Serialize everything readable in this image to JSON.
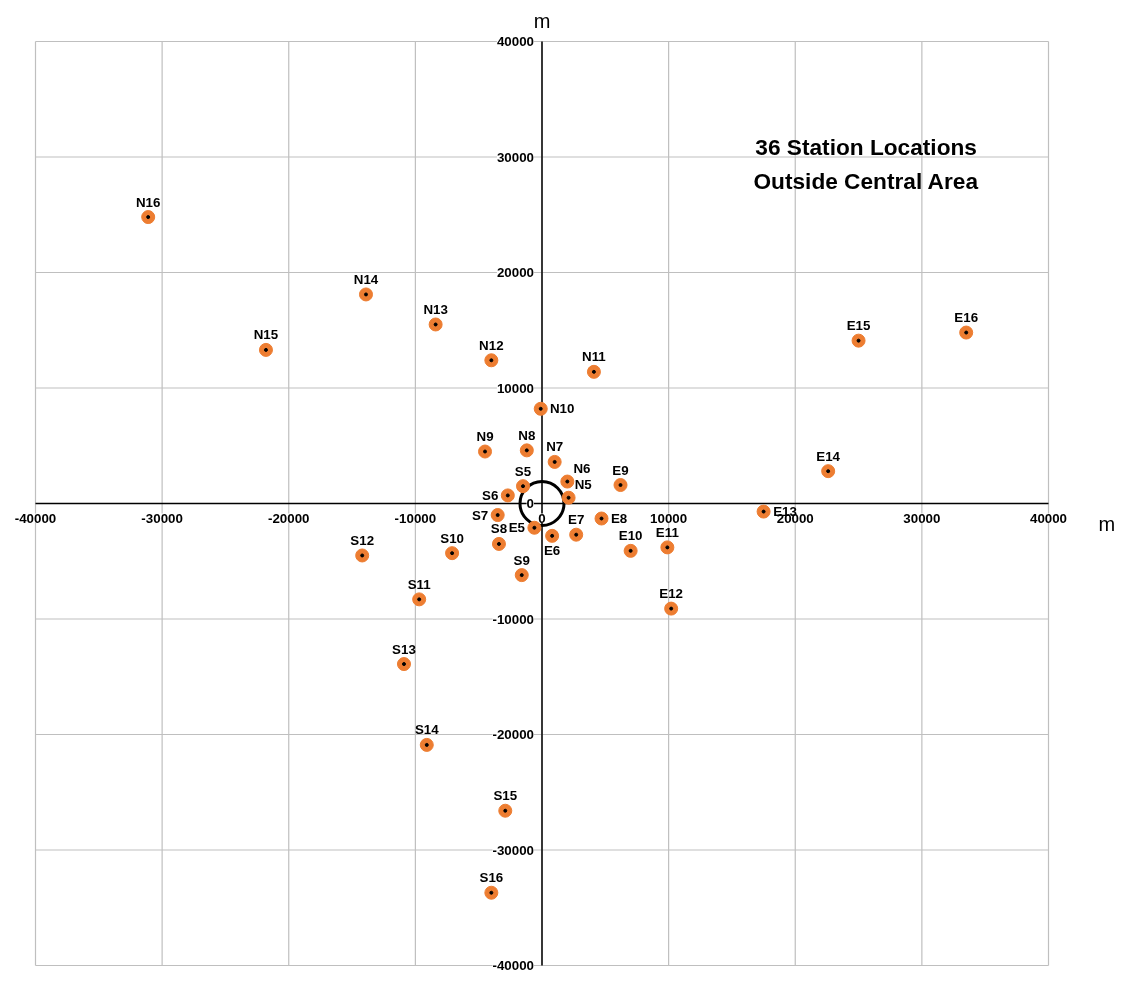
{
  "chart_data": {
    "type": "scatter",
    "title": "36 Station Locations\nOutside Central Area",
    "xlabel": "m",
    "ylabel": "m",
    "xlim": [
      -40000,
      40000
    ],
    "ylim": [
      -40000,
      40000
    ],
    "xticks": [
      -40000,
      -30000,
      -20000,
      -10000,
      0,
      10000,
      20000,
      30000,
      40000
    ],
    "yticks": [
      -40000,
      -30000,
      -20000,
      -10000,
      0,
      10000,
      20000,
      30000,
      40000
    ],
    "grid": true,
    "marker": "circle",
    "series": [
      {
        "color": "#ed7d31",
        "x": [
          2100,
          2000,
          1000,
          -1200,
          -4500,
          -100,
          4100,
          -4000,
          -8400,
          -13900,
          -21800,
          -31100,
          -1500,
          -2700,
          -3500,
          -3400,
          -1600,
          -7100,
          -9700,
          -14200,
          -10900,
          -9100,
          -2900,
          -4000,
          -600,
          800,
          2700,
          4700,
          6200,
          7000,
          9900,
          10200,
          17500,
          22600,
          25000,
          33500
        ],
        "values": [
          500,
          1900,
          3600,
          4600,
          4500,
          8200,
          11400,
          12400,
          15500,
          18100,
          13300,
          24800,
          1500,
          700,
          -1000,
          -3500,
          -6200,
          -4300,
          -8300,
          -4500,
          -13900,
          -20900,
          -26600,
          -33700,
          -2100,
          -2800,
          -2700,
          -1300,
          1600,
          -4100,
          -3800,
          -9100,
          -700,
          2800,
          14100,
          14800
        ],
        "value_labels": [
          "N5",
          "N6",
          "N7",
          "N8",
          "N9",
          "N10",
          "N11",
          "N12",
          "N13",
          "N14",
          "N15",
          "N16",
          "S5",
          "S6",
          "S7",
          "S8",
          "S9",
          "S10",
          "S11",
          "S12",
          "S13",
          "S14",
          "S15",
          "S16",
          "E5",
          "E6",
          "E7",
          "E8",
          "E9",
          "E10",
          "E11",
          "E12",
          "E13",
          "E14",
          "E15",
          "E16"
        ]
      },
      {
        "type": "bubble",
        "color": "#000000",
        "x": [
          0
        ],
        "values": [
          0
        ],
        "sizes": [
          1
        ]
      }
    ]
  }
}
